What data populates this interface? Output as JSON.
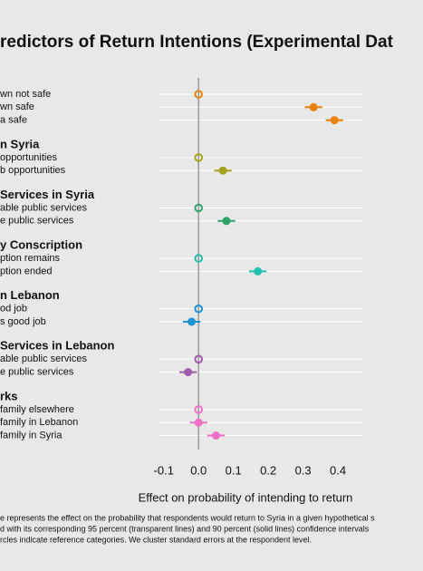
{
  "chart_data": {
    "type": "dot",
    "title": "redictors of Return Intentions (Experimental Dat",
    "x_label": "Effect on probability of intending to return",
    "xlim": [
      -0.115,
      0.47
    ],
    "xticks": [
      -0.1,
      {
        "value": 0,
        "label": "0.0"
      },
      0.1,
      0.2,
      0.3,
      0.4
    ],
    "groups": [
      {
        "name": "",
        "color": "#e8820c",
        "labels": [
          "wn not safe",
          "wn safe",
          "a safe"
        ],
        "values": [
          0,
          0.33,
          0.39
        ],
        "errors": [
          null,
          0.025,
          0.025
        ]
      },
      {
        "name": "n Syria",
        "color": "#a7a21c",
        "labels": [
          "opportunities",
          "b opportunities"
        ],
        "values": [
          0,
          0.07
        ],
        "errors": [
          null,
          0.025
        ]
      },
      {
        "name": "Services in Syria",
        "color": "#2ea36a",
        "labels": [
          "able public services",
          "e public services"
        ],
        "values": [
          0,
          0.08
        ],
        "errors": [
          null,
          0.025
        ]
      },
      {
        "name": "y Conscription",
        "color": "#24bfae",
        "labels": [
          "ption remains",
          "ption ended"
        ],
        "values": [
          0,
          0.17
        ],
        "errors": [
          null,
          0.025
        ]
      },
      {
        "name": "n Lebanon",
        "color": "#1f93d6",
        "labels": [
          "od job",
          "s good job"
        ],
        "values": [
          0,
          -0.02
        ],
        "errors": [
          null,
          0.025
        ]
      },
      {
        "name": "Services in Lebanon",
        "color": "#a25cad",
        "labels": [
          "able public services",
          "e public services"
        ],
        "values": [
          0,
          -0.03
        ],
        "errors": [
          null,
          0.025
        ]
      },
      {
        "name": "rks",
        "color": "#ee6fc6",
        "labels": [
          "family elsewhere",
          "family in Lebanon",
          "family in Syria"
        ],
        "values": [
          0,
          0,
          0.05
        ],
        "errors": [
          null,
          0.025,
          0.025
        ]
      }
    ],
    "notes": [
      "e represents the effect on the probability that respondents would return to Syria in a given hypothetical s",
      "d with its corresponding 95 percent (transparent lines) and 90 percent (solid lines) confidence intervals",
      "rcles indicate reference categories. We cluster standard errors at the respondent level."
    ]
  }
}
